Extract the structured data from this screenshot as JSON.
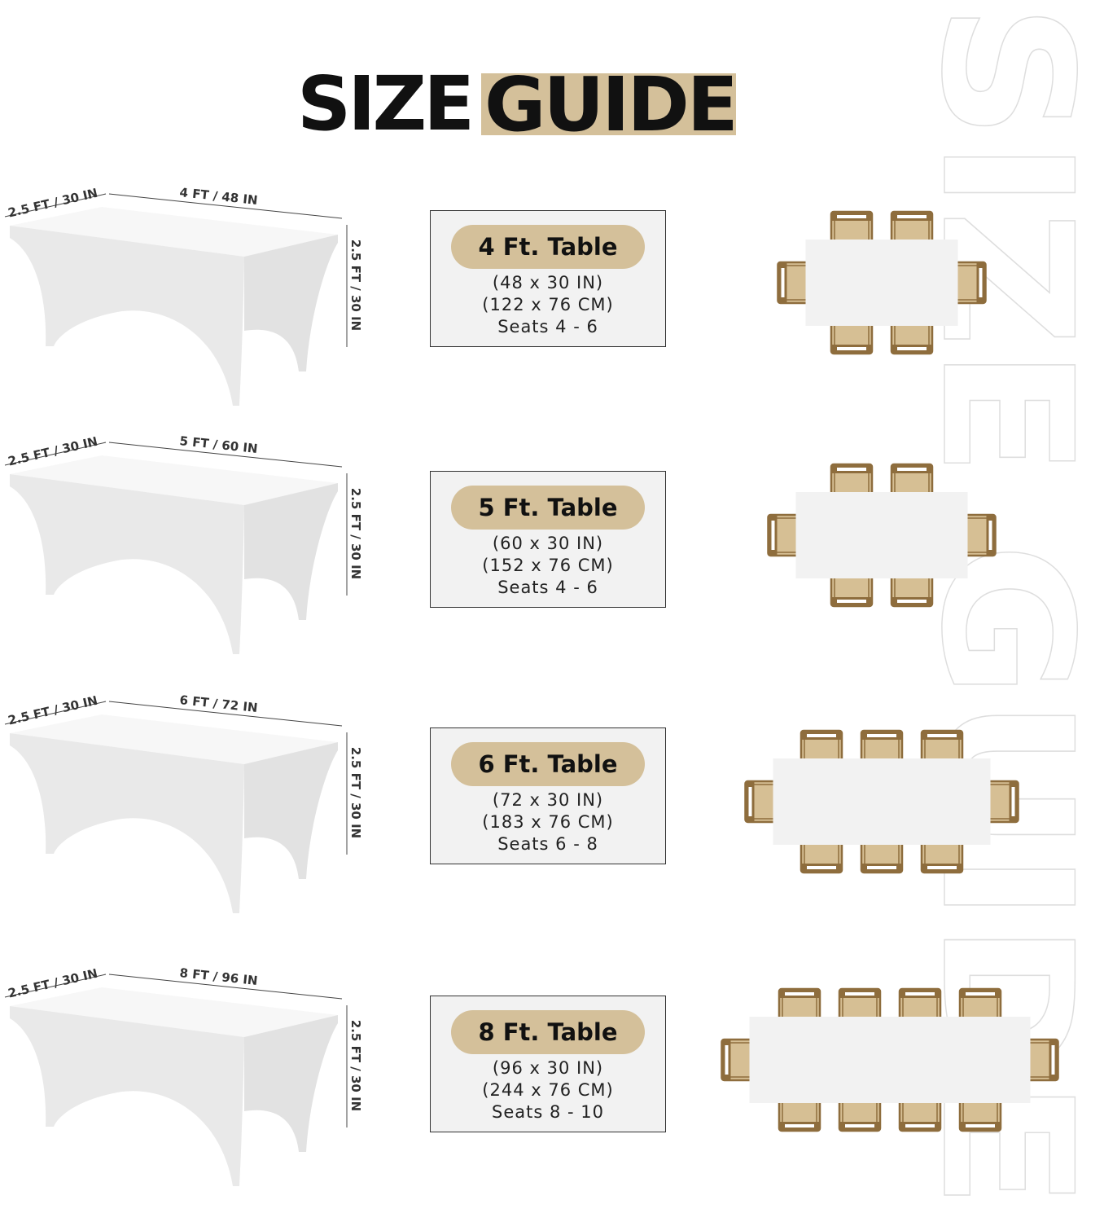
{
  "title": {
    "part1": "SIZE",
    "part2": "GUIDE"
  },
  "watermark": "SIZE GUIDE",
  "colors": {
    "accent": "#d4c09a",
    "chair_frame": "#8e6d3d",
    "chair_seat": "#d6bf94",
    "table_top": "#f2f2f2",
    "box_bg": "#f2f2f2"
  },
  "rows": [
    {
      "length_label": "4 FT / 48 IN",
      "depth_label": "2.5 FT / 30 IN",
      "height_label": "2.5 FT / 30 IN",
      "name": "4 Ft. Table",
      "inches": "(48 x 30 IN)",
      "cm": "(122 x 76 CM)",
      "seats": "Seats 4 - 6",
      "chairs_per_side": 2,
      "chairs_per_end": 1
    },
    {
      "length_label": "5 FT / 60 IN",
      "depth_label": "2.5 FT / 30 IN",
      "height_label": "2.5 FT / 30 IN",
      "name": "5 Ft. Table",
      "inches": "(60 x 30 IN)",
      "cm": "(152 x 76 CM)",
      "seats": "Seats 4 - 6",
      "chairs_per_side": 2,
      "chairs_per_end": 1
    },
    {
      "length_label": "6 FT / 72 IN",
      "depth_label": "2.5 FT / 30 IN",
      "height_label": "2.5 FT / 30 IN",
      "name": "6 Ft. Table",
      "inches": "(72 x 30 IN)",
      "cm": "(183 x 76 CM)",
      "seats": "Seats 6 - 8",
      "chairs_per_side": 3,
      "chairs_per_end": 1
    },
    {
      "length_label": "8 FT / 96 IN",
      "depth_label": "2.5 FT / 30 IN",
      "height_label": "2.5 FT / 30 IN",
      "name": "8 Ft. Table",
      "inches": "(96 x 30 IN)",
      "cm": "(244 x 76 CM)",
      "seats": "Seats 8 - 10",
      "chairs_per_side": 4,
      "chairs_per_end": 1
    }
  ]
}
